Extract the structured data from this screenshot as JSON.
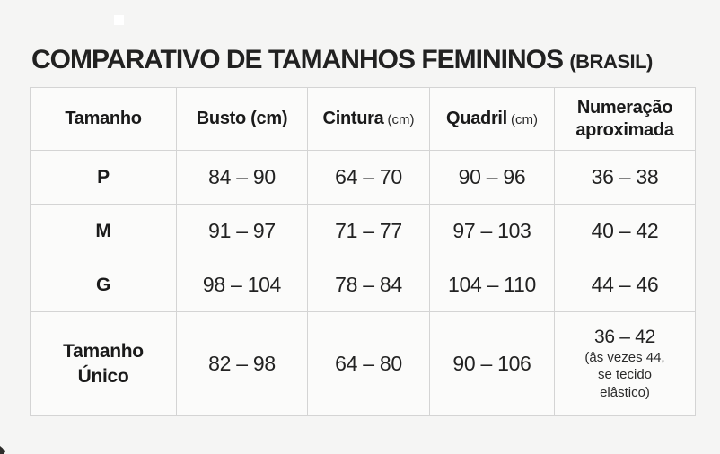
{
  "title": {
    "main": "COMPARATIVO DE TAMANHOS FEMININOS",
    "suffix": "(BRASIL)"
  },
  "table": {
    "headers": [
      {
        "label": "Tamanho",
        "unit": ""
      },
      {
        "label": "Busto (cm)",
        "unit": ""
      },
      {
        "label": "Cintura",
        "unit": "(cm)"
      },
      {
        "label": "Quadril",
        "unit": "(cm)"
      },
      {
        "label": "Numeração\naproximada",
        "unit": ""
      }
    ],
    "rows": [
      {
        "size": "P",
        "busto": "84 – 90",
        "cintura": "64 – 70",
        "quadril": "90 – 96",
        "numeracao": "36 – 38",
        "numeracao_note": ""
      },
      {
        "size": "M",
        "busto": "91 – 97",
        "cintura": "71 – 77",
        "quadril": "97 – 103",
        "numeracao": "40 – 42",
        "numeracao_note": ""
      },
      {
        "size": "G",
        "busto": "98 – 104",
        "cintura": "78 – 84",
        "quadril": "104 – 110",
        "numeracao": "44 – 46",
        "numeracao_note": ""
      },
      {
        "size": "Tamanho\nÚnico",
        "busto": "82 – 98",
        "cintura": "64 – 80",
        "quadril": "90 – 106",
        "numeracao": "36 – 42",
        "numeracao_note": "(âs vezes 44, se tecido elâstico)"
      }
    ]
  },
  "colors": {
    "page_background": "#f5f5f4",
    "cell_background": "#fbfbfa",
    "border": "#d4d4d4",
    "text": "#1f1f1f"
  }
}
